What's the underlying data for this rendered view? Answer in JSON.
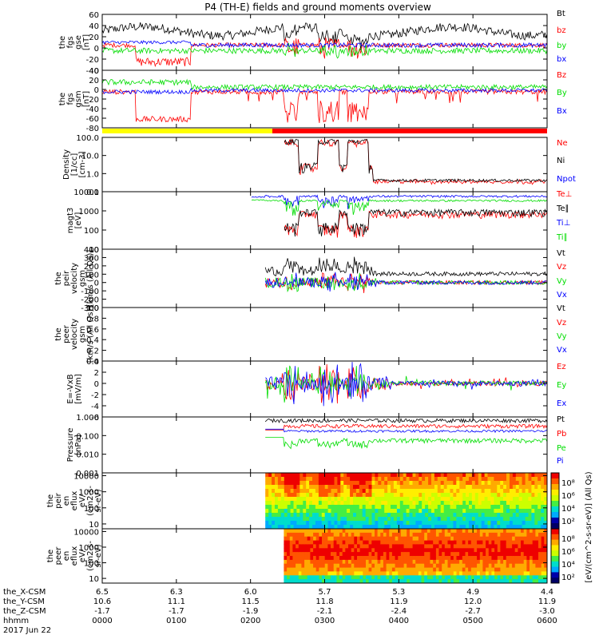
{
  "title": "P4 (TH-E) fields and ground moments overview",
  "colors": {
    "black": "#000000",
    "red": "#ff0000",
    "green": "#00dd00",
    "blue": "#0000ff",
    "yellow": "#ffff00"
  },
  "chart_data": [
    {
      "type": "line",
      "id": "fgs_gse",
      "ylabel": [
        "the",
        "fgs",
        "gse",
        "[nT]"
      ],
      "ylim": [
        -40,
        60
      ],
      "yticks": [
        60,
        40,
        20,
        0,
        -20,
        -40
      ],
      "series": [
        {
          "name": "Bt",
          "color": "black"
        },
        {
          "name": "bz",
          "color": "red"
        },
        {
          "name": "by",
          "color": "green"
        },
        {
          "name": "bx",
          "color": "blue"
        }
      ]
    },
    {
      "type": "line",
      "id": "fgs_gsm",
      "ylabel": [
        "the",
        "fgs",
        "gsm",
        "[nT]"
      ],
      "ylim": [
        -80,
        40
      ],
      "yticks": [
        40,
        20,
        0,
        -20,
        -40,
        -60,
        -80
      ],
      "series": [
        {
          "name": "Bz",
          "color": "red"
        },
        {
          "name": "By",
          "color": "green"
        },
        {
          "name": "Bx",
          "color": "blue"
        }
      ]
    },
    {
      "type": "line",
      "id": "density",
      "ylabel": [
        "Density",
        "[1/cc]",
        "[cm-3]"
      ],
      "log": true,
      "ylim": [
        0.1,
        100
      ],
      "yticks": [
        "100.0",
        "10.0",
        "1.0",
        "0.1"
      ],
      "series": [
        {
          "name": "Ne",
          "color": "red"
        },
        {
          "name": "Ni",
          "color": "black"
        },
        {
          "name": "Npot",
          "color": "blue"
        }
      ]
    },
    {
      "type": "line",
      "id": "temp",
      "ylabel": [
        "magt3",
        "[eV]"
      ],
      "log": true,
      "ylim": [
        10,
        10000
      ],
      "yticks": [
        "10000",
        "1000",
        "100",
        "10"
      ],
      "series": [
        {
          "name": "Te⊥",
          "color": "red"
        },
        {
          "name": "Te∥",
          "color": "black"
        },
        {
          "name": "Ti⊥",
          "color": "blue"
        },
        {
          "name": "Ti∥",
          "color": "green"
        }
      ]
    },
    {
      "type": "line",
      "id": "peir_vel",
      "ylabel": [
        "the",
        "peir",
        "velocity",
        "gsm",
        "[km/s (All Qs)]"
      ],
      "ylim": [
        -300,
        400
      ],
      "yticks": [
        400,
        300,
        200,
        100,
        0,
        -100,
        -200,
        -300
      ],
      "series": [
        {
          "name": "Vt",
          "color": "black"
        },
        {
          "name": "Vz",
          "color": "red"
        },
        {
          "name": "Vy",
          "color": "green"
        },
        {
          "name": "Vx",
          "color": "blue"
        }
      ]
    },
    {
      "type": "line",
      "id": "peer_vel",
      "ylabel": [
        "the",
        "peer",
        "velocity",
        "gsm",
        "[km/s (All Qs)]"
      ],
      "ylim": [
        0,
        1
      ],
      "yticks": [
        "1.0",
        "0.8",
        "0.6",
        "0.4",
        "0.2",
        "0.0"
      ],
      "series": [
        {
          "name": "Vt",
          "color": "black"
        },
        {
          "name": "Vz",
          "color": "red"
        },
        {
          "name": "Vy",
          "color": "green"
        },
        {
          "name": "Vx",
          "color": "blue"
        }
      ]
    },
    {
      "type": "line",
      "id": "efield",
      "ylabel": [
        "E=-VxB",
        "[mV/m]"
      ],
      "ylim": [
        -6,
        4
      ],
      "yticks": [
        4,
        2,
        0,
        -2,
        -4,
        -6
      ],
      "series": [
        {
          "name": "Ez",
          "color": "red"
        },
        {
          "name": "Ey",
          "color": "green"
        },
        {
          "name": "Ex",
          "color": "blue"
        }
      ]
    },
    {
      "type": "line",
      "id": "pressure",
      "ylabel": [
        "Pressure",
        "[nPa]"
      ],
      "log": true,
      "ylim": [
        0.001,
        1
      ],
      "yticks": [
        "1.000",
        "0.100",
        "0.010",
        "0.001"
      ],
      "series": [
        {
          "name": "Pt",
          "color": "black"
        },
        {
          "name": "Pb",
          "color": "red"
        },
        {
          "name": "Pe",
          "color": "green"
        },
        {
          "name": "Pi",
          "color": "blue"
        }
      ]
    },
    {
      "type": "heatmap",
      "id": "peir_spec",
      "ylabel": [
        "the",
        "peir",
        "en",
        "eflux",
        "eV/",
        "(cm2-s-",
        "sr-eV)"
      ],
      "log": true,
      "ylim": [
        5,
        15000
      ],
      "yticks": [
        "10000",
        "1000",
        "100",
        "10"
      ]
    },
    {
      "type": "heatmap",
      "id": "peer_spec",
      "ylabel": [
        "the",
        "peer",
        "en",
        "eflux",
        "eV/",
        "(cm2-s-",
        "sr-eV)"
      ],
      "log": true,
      "ylim": [
        5,
        15000
      ],
      "yticks": [
        "10000",
        "1000",
        "100",
        "10"
      ]
    }
  ],
  "colorbar": {
    "label": "[eV/(cm^2-s-sr-eV)] (All Qs)",
    "ticks": [
      "10⁸",
      "10⁶",
      "10⁴",
      "10²"
    ]
  },
  "x_axis": {
    "ticks": [
      {
        "hhmm": "0000",
        "x": "6.5",
        "y": "10.6",
        "z": "-1.7"
      },
      {
        "hhmm": "0100",
        "x": "6.3",
        "y": "11.1",
        "z": "-1.7"
      },
      {
        "hhmm": "0200",
        "x": "6.0",
        "y": "11.5",
        "z": "-1.9"
      },
      {
        "hhmm": "0300",
        "x": "5.7",
        "y": "11.8",
        "z": "-2.1"
      },
      {
        "hhmm": "0400",
        "x": "5.3",
        "y": "11.9",
        "z": "-2.4"
      },
      {
        "hhmm": "0500",
        "x": "4.9",
        "y": "12.0",
        "z": "-2.7"
      },
      {
        "hhmm": "0600",
        "x": "4.4",
        "y": "11.9",
        "z": "-3.0"
      }
    ],
    "rows": [
      "the_X-CSM",
      "the_Y-CSM",
      "the_Z-CSM",
      "hhmm"
    ],
    "date": "2017 Jun 22"
  }
}
